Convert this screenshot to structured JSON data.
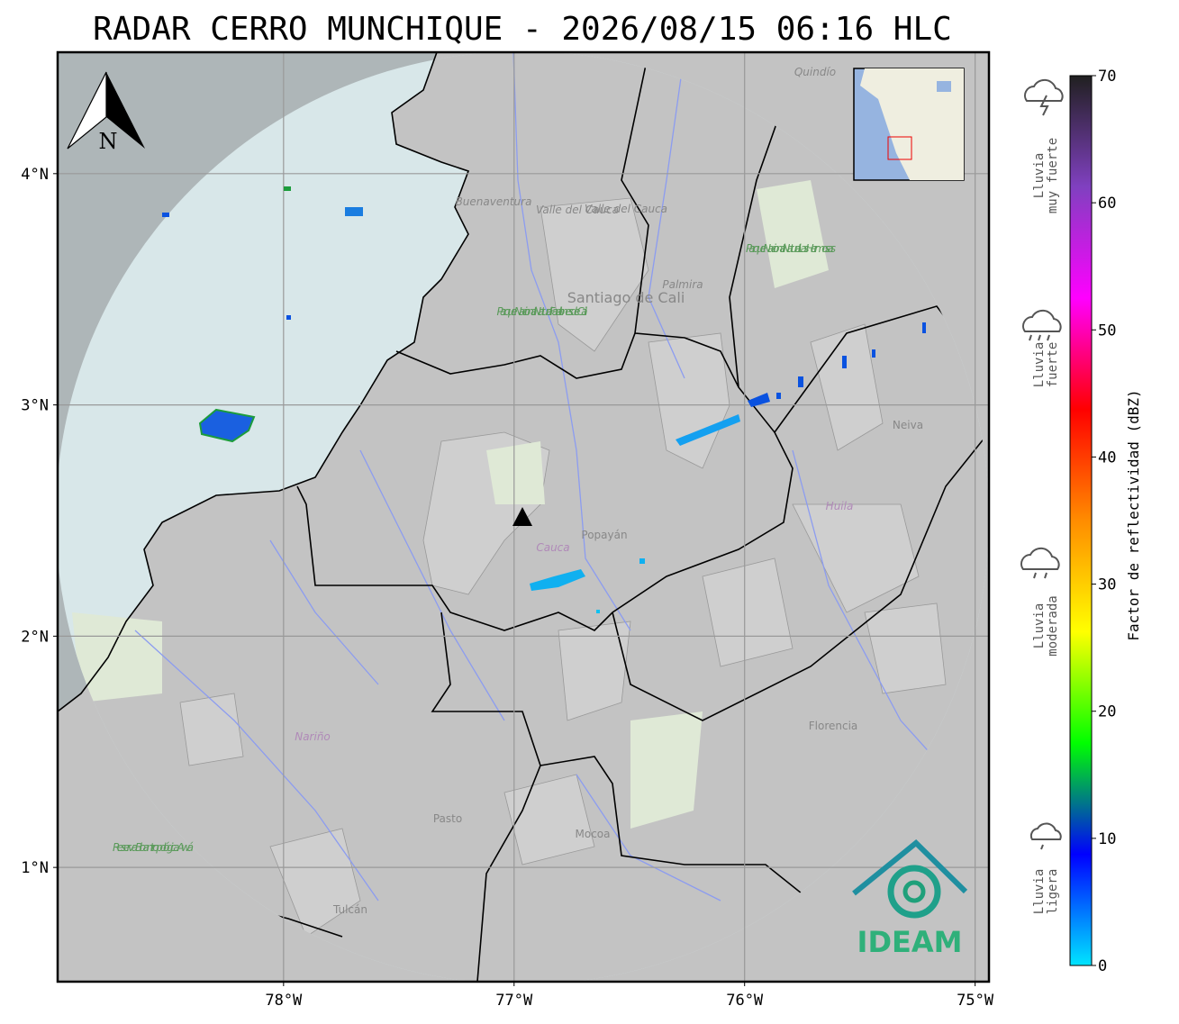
{
  "title": "RADAR CERRO MUNCHIQUE - 2026/08/15 06:16 HLC",
  "map": {
    "xlim": [
      -78.98,
      -74.94
    ],
    "ylim": [
      0.506,
      4.525
    ],
    "xticks": [
      {
        "value": -78,
        "label": "78°W"
      },
      {
        "value": -77,
        "label": "77°W"
      },
      {
        "value": -76,
        "label": "76°W"
      },
      {
        "value": -75,
        "label": "75°W"
      }
    ],
    "yticks": [
      {
        "value": 1,
        "label": "1°N"
      },
      {
        "value": 2,
        "label": "2°N"
      },
      {
        "value": 3,
        "label": "3°N"
      },
      {
        "value": 4,
        "label": "4°N"
      }
    ],
    "grid": true,
    "places": [
      "Quindío",
      "Buenaventura",
      "Valle del Cauca",
      "Parque Nacional Natural Las Hermosas",
      "Santiago de Cali",
      "Palmira",
      "Parque Nacional Natural Farallones de Cali",
      "Neiva",
      "Huila",
      "Cauca",
      "Popayán",
      "Nariño",
      "Florencia",
      "Pasto",
      "Mocoa",
      "Tulcán",
      "Reserva Bioantropológica Awá"
    ],
    "compass": "N",
    "logo": "IDEAM"
  },
  "colorbar": {
    "label": "Factor de reflectividad (dBZ)",
    "lim": [
      0,
      70
    ],
    "ticks": [
      0,
      10,
      20,
      30,
      40,
      50,
      60,
      70
    ],
    "colors": [
      "#00e5ff",
      "#0000ff",
      "#00ff00",
      "#ffff00",
      "#ff8c00",
      "#ff0000",
      "#ff00ff",
      "#8040c0",
      "#202020"
    ]
  },
  "rain_classes": [
    {
      "lines": [
        "Lluvia",
        "muy fuerte"
      ]
    },
    {
      "lines": [
        "Lluvia",
        "fuerte"
      ]
    },
    {
      "lines": [
        "Lluvia",
        "moderada"
      ]
    },
    {
      "lines": [
        "Lluvia",
        "ligera"
      ]
    }
  ]
}
